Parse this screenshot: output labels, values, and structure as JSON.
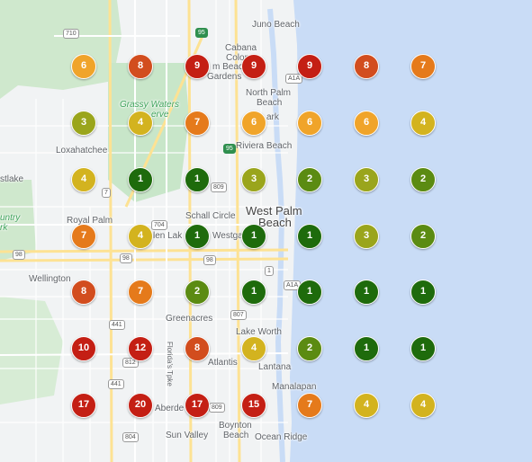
{
  "colors": {
    "water": "#c9dcf6",
    "land": "#f1f3f4",
    "park": "#c8e6c9",
    "road": "#ffffff",
    "highway": "#fde293",
    "rank_1": "#1e6b0c",
    "rank_2": "#5b8b12",
    "rank_3": "#9aa51c",
    "rank_4": "#d3b31f",
    "rank_5_6": "#f0a42a",
    "rank_7": "#e57a1b",
    "rank_8": "#d24d1e",
    "rank_9_plus": "#c41f14"
  },
  "places": {
    "juno_beach": "Juno Beach",
    "cabana_colony_1": "Cabana",
    "cabana_colony_2": "Colony",
    "pbg_1": "m Beach",
    "pbg_2": "Gardens",
    "north_palm_beach_1": "North Palm",
    "north_palm_beach_2": "Beach",
    "grassy_waters_1": "Grassy Waters",
    "grassy_waters_2": "erve",
    "park": "ark",
    "loxahatchee": "Loxahatchee",
    "riviera_beach": "Riviera Beach",
    "westlake": "stlake",
    "schall_circle": "Schall Circle",
    "west_palm_beach_1": "West Palm",
    "west_palm_beach_2": "Beach",
    "country_1": "untry",
    "country_2": "rk",
    "royal_palm": "Royal Palm",
    "glen_lakes": "len Lak",
    "westgate": "Westga",
    "wellington": "Wellington",
    "greenacres": "Greenacres",
    "lake_worth": "Lake Worth",
    "atlantis": "Atlantis",
    "lantana": "Lantana",
    "manalapan": "Manalapan",
    "aberdeen": "Aberde",
    "boynton_beach_1": "Boynton",
    "boynton_beach_2": "Beach",
    "sun_valley": "Sun Valley",
    "ocean_ridge": "Ocean Ridge",
    "florida_tpke": "Florida's Tpke"
  },
  "route_shields": [
    "710",
    "95",
    "A1A",
    "95",
    "809",
    "7",
    "704",
    "98",
    "98",
    "98",
    "A1A",
    "807",
    "441",
    "812",
    "441",
    "809",
    "804",
    "1"
  ],
  "rank_grid": [
    [
      6,
      8,
      9,
      9,
      9,
      8,
      7
    ],
    [
      3,
      4,
      7,
      6,
      6,
      6,
      4
    ],
    [
      4,
      1,
      1,
      3,
      2,
      3,
      2
    ],
    [
      7,
      4,
      1,
      1,
      1,
      3,
      2
    ],
    [
      8,
      7,
      2,
      1,
      1,
      1,
      1
    ],
    [
      10,
      12,
      8,
      4,
      2,
      1,
      1
    ],
    [
      17,
      20,
      17,
      15,
      7,
      4,
      4
    ]
  ]
}
